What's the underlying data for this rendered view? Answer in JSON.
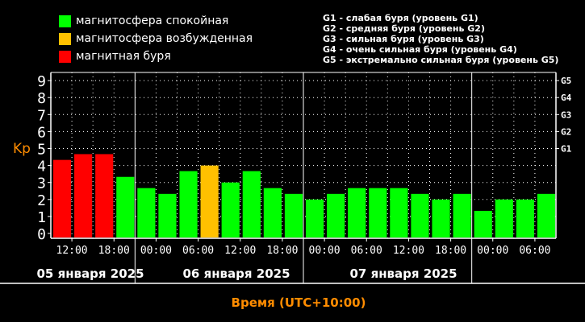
{
  "legend": {
    "items": [
      {
        "label": "магнитосфера спокойная",
        "color": "#00ff00"
      },
      {
        "label": "магнитосфера возбужденная",
        "color": "#ffc000"
      },
      {
        "label": "магнитная буря",
        "color": "#ff0000"
      }
    ],
    "storm_levels": [
      "G1 - слабая буря (уровень G1)",
      "G2 - средняя буря (уровень G2)",
      "G3 - сильная буря (уровень G3)",
      "G4 - очень сильная буря (уровень G4)",
      "G5 - экстремально сильная буря (уровень G5)"
    ]
  },
  "colors": {
    "quiet": "#00ff00",
    "active": "#ffc000",
    "storm": "#ff0000",
    "label": "#ff8c00"
  },
  "chart_data": {
    "type": "bar",
    "ylabel": "Kp",
    "xlabel": "Время (UTC+10:00)",
    "ylim": [
      0,
      9
    ],
    "yticks": [
      "0",
      "1",
      "2",
      "3",
      "4",
      "5",
      "6",
      "7",
      "8",
      "9"
    ],
    "right_ticks": [
      {
        "label": "G1",
        "value": 5
      },
      {
        "label": "G2",
        "value": 6
      },
      {
        "label": "G3",
        "value": 7
      },
      {
        "label": "G4",
        "value": 8
      },
      {
        "label": "G5",
        "value": 9
      }
    ],
    "grid": true,
    "values": [
      4.33,
      4.67,
      4.67,
      3.33,
      2.67,
      2.33,
      3.67,
      4.0,
      3.0,
      3.67,
      2.67,
      2.33,
      2.0,
      2.33,
      2.67,
      2.67,
      2.67,
      2.33,
      2.0,
      2.33,
      1.33,
      2.0,
      2.0,
      2.33
    ],
    "levels": [
      "storm",
      "storm",
      "storm",
      "quiet",
      "quiet",
      "quiet",
      "quiet",
      "active",
      "quiet",
      "quiet",
      "quiet",
      "quiet",
      "quiet",
      "quiet",
      "quiet",
      "quiet",
      "quiet",
      "quiet",
      "quiet",
      "quiet",
      "quiet",
      "quiet",
      "quiet",
      "quiet"
    ],
    "time_labels": [
      "12:00",
      "18:00",
      "00:00",
      "06:00",
      "12:00",
      "18:00",
      "00:00",
      "06:00",
      "12:00",
      "18:00",
      "00:00",
      "06:00"
    ],
    "days": [
      "05 января 2025",
      "06 января 2025",
      "07 января 2025"
    ]
  }
}
